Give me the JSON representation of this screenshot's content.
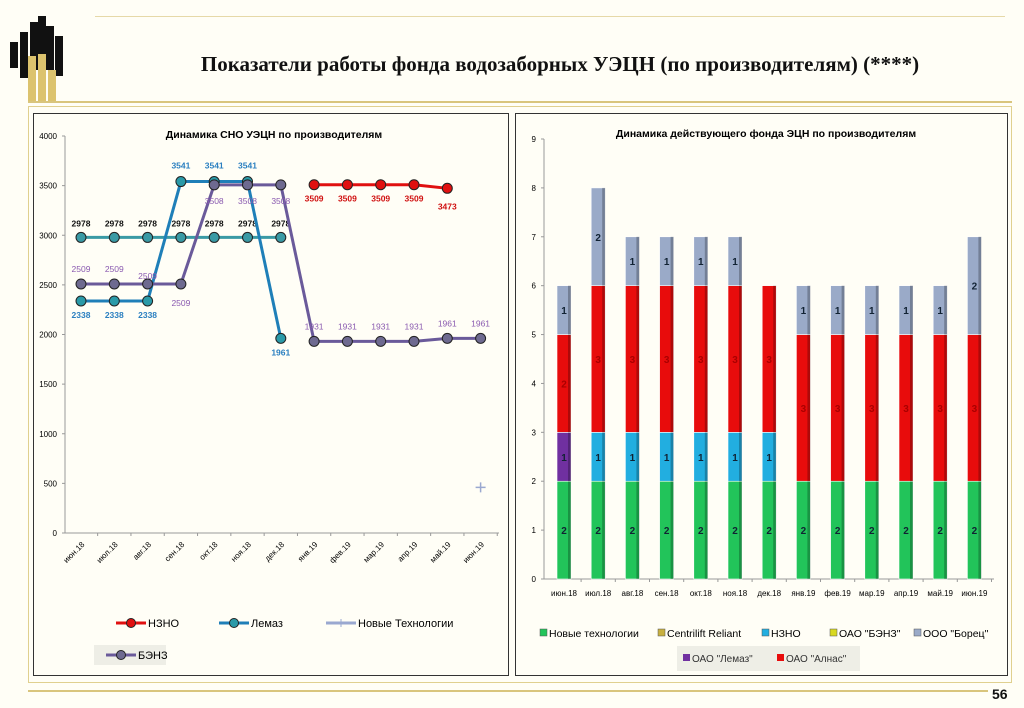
{
  "header": {
    "title": "Показатели работы фонда водозаборных УЭЦН (по производителям) (****)",
    "page_number": "56"
  },
  "colors": {
    "gold": "#d9c57d",
    "logo_black": "#111111",
    "logo_gold": "#dcc36e"
  },
  "chart_data": [
    {
      "type": "line",
      "title": "Динамика СНО  УЭЦН  по производителям",
      "categories": [
        "июн.18",
        "июл.18",
        "авг.18",
        "сен.18",
        "окт.18",
        "ноя.18",
        "дек.18",
        "янв.19",
        "фев.19",
        "мар.19",
        "апр.19",
        "май.19",
        "июн.19"
      ],
      "ylim": [
        0,
        4000
      ],
      "yticks": [
        0,
        500,
        1000,
        1500,
        2000,
        2500,
        3000,
        3500,
        4000
      ],
      "grid": false,
      "legend_placement": "bottom",
      "series": [
        {
          "name": "НЗНО",
          "color": "#e01010",
          "label_color": "#d01010",
          "values": [
            null,
            null,
            null,
            null,
            null,
            null,
            null,
            3509,
            3509,
            3509,
            3509,
            3473,
            null
          ]
        },
        {
          "name": "Лемаз",
          "color": "#1f7fb8",
          "marker": "#2a9aa8",
          "label_color": "#2a7fc0",
          "values": [
            2338,
            2338,
            2338,
            3541,
            3541,
            3541,
            1961,
            null,
            null,
            null,
            null,
            null,
            null
          ]
        },
        {
          "name": "",
          "color": "#3a9aa5",
          "marker": "#3a9aa5",
          "label_color": "#111111",
          "values": [
            2978,
            2978,
            2978,
            2978,
            2978,
            2978,
            2978,
            null,
            null,
            null,
            null,
            null,
            null
          ]
        },
        {
          "name": "Новые Технологии",
          "color": "#9aa8d0",
          "marker": "plus",
          "values": [
            null,
            null,
            null,
            null,
            null,
            null,
            null,
            null,
            null,
            null,
            null,
            null,
            460
          ],
          "show_labels": false
        },
        {
          "name": "БЭНЗ",
          "color": "#6a5a9a",
          "marker": "#6e6a90",
          "label_color": "#8a5ab0",
          "values": [
            2509,
            2509,
            2509,
            2509,
            3508,
            3508,
            3508,
            1931,
            1931,
            1931,
            1931,
            1961,
            1961
          ]
        }
      ],
      "legend": [
        "НЗНО",
        "Лемаз",
        "Новые Технологии",
        "БЭНЗ"
      ]
    },
    {
      "type": "bar",
      "stacked": true,
      "title": "Динамика действующего фонда ЭЦН по производителям",
      "categories": [
        "июн.18",
        "июл.18",
        "авг.18",
        "сен.18",
        "окт.18",
        "ноя.18",
        "дек.18",
        "янв.19",
        "фев.19",
        "мар.19",
        "апр.19",
        "май.19",
        "июн.19"
      ],
      "ylim": [
        0,
        9
      ],
      "yticks": [
        0,
        1,
        2,
        3,
        4,
        5,
        6,
        7,
        8,
        9
      ],
      "grid": false,
      "legend_placement": "bottom",
      "series": [
        {
          "name": "Новые технологии",
          "color": "#22c45a",
          "values": [
            2,
            2,
            2,
            2,
            2,
            2,
            2,
            2,
            2,
            2,
            2,
            2,
            2
          ]
        },
        {
          "name": "Centrilift Reliant",
          "color": "#c8b040",
          "values": [
            0,
            0,
            0,
            0,
            0,
            0,
            0,
            0,
            0,
            0,
            0,
            0,
            0
          ]
        },
        {
          "name": "НЗНО",
          "color": "#22aee0",
          "values": [
            0,
            1,
            1,
            1,
            1,
            1,
            1,
            0,
            0,
            0,
            0,
            0,
            0
          ]
        },
        {
          "name": "ОАО  \"БЭНЗ\"",
          "color": "#d8d820",
          "values": [
            0,
            0,
            0,
            0,
            0,
            0,
            0,
            0,
            0,
            0,
            0,
            0,
            0
          ]
        },
        {
          "name": "ОАО \"Лемаз\"",
          "color": "#7030a0",
          "values": [
            1,
            0,
            0,
            0,
            0,
            0,
            0,
            0,
            0,
            0,
            0,
            0,
            0
          ]
        },
        {
          "name": "ОАО \"Алнас\"",
          "color": "#e80c0c",
          "values": [
            2,
            3,
            3,
            3,
            3,
            3,
            3,
            3,
            3,
            3,
            3,
            3,
            3
          ]
        },
        {
          "name": "ООО \"Борец\"",
          "color": "#9aaac8",
          "values": [
            1,
            2,
            1,
            1,
            1,
            1,
            0,
            1,
            1,
            1,
            1,
            1,
            2
          ]
        }
      ],
      "legend_rows": [
        [
          "Новые технологии",
          "Centrilift Reliant",
          "НЗНО",
          "ОАО  \"БЭНЗ\"",
          "ООО \"Борец\""
        ],
        [
          "ОАО \"Лемаз\"",
          "ОАО \"Алнас\""
        ]
      ]
    }
  ]
}
